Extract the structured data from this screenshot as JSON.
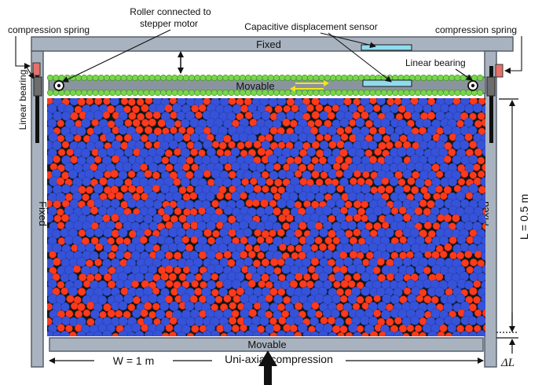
{
  "labels": {
    "spring_left": "compression spring",
    "spring_right": "compression spring",
    "roller": "Roller connected to",
    "roller_line2": "stepper motor",
    "sensor": "Capacitive displacement sensor",
    "bearing_left": "Linear bearing",
    "bearing_right": "Linear bearing",
    "fixed_top": "Fixed",
    "fixed_left": "Fixed",
    "fixed_right": "Fixed",
    "movable_top": "Movable",
    "movable_bottom": "Movable",
    "length": "L = 0.5 m",
    "width": "W = 1 m",
    "compression": "Uni-axial compression",
    "delta": "ΔL"
  },
  "colors": {
    "frame": "#a9b3bf",
    "frame_edge": "#55606c",
    "blue_particle": "#3552d9",
    "red_particle": "#ff3a1c",
    "green_particle": "#79d64b",
    "sensor": "#8fdcf0",
    "background_gap": "#0b1a1a",
    "arrow_yellow": "#f2e41e",
    "spring_red": "#e8706a"
  }
}
